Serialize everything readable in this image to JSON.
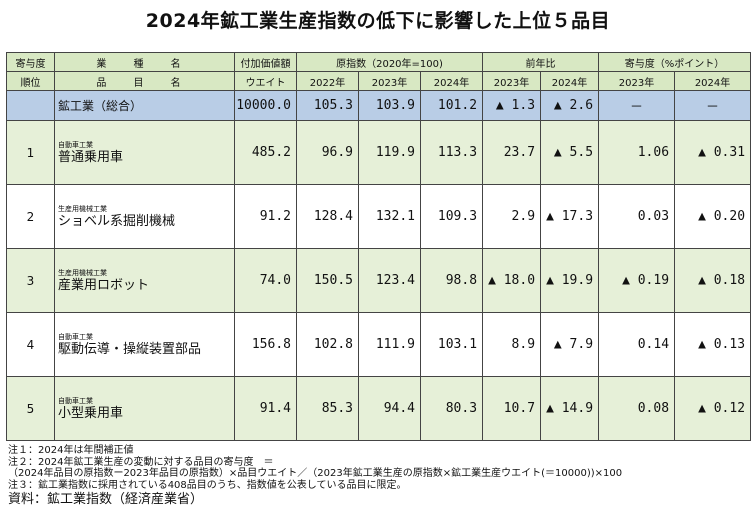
{
  "title": "2024年鉱工業生産指数の低下に影響した上位５品目",
  "headers": {
    "rank_top": "寄与度",
    "rank_bottom": "順位",
    "name_top": "業 種 名",
    "name_bottom": "品 目 名",
    "weight_top": "付加価値額",
    "weight_bottom": "ウエイト",
    "index_group": "原指数（2020年=100)",
    "yoy_group": "前年比",
    "contrib_group": "寄与度（%ポイント）",
    "years": {
      "y2022": "2022年",
      "y2023": "2023年",
      "y2024": "2024年"
    }
  },
  "total": {
    "name": "鉱工業（総合）",
    "weight": "10000.0",
    "idx2022": "105.3",
    "idx2023": "103.9",
    "idx2024": "101.2",
    "yoy2023": "▲ 1.3",
    "yoy2024": "▲ 2.6",
    "c2023": "－",
    "c2024": "－"
  },
  "rows": [
    {
      "rank": "1",
      "category": "自動車工業",
      "item": "普通乗用車",
      "weight": "485.2",
      "idx2022": "96.9",
      "idx2023": "119.9",
      "idx2024": "113.3",
      "yoy2023": "23.7",
      "yoy2024": "▲ 5.5",
      "c2023": "1.06",
      "c2024": "▲ 0.31"
    },
    {
      "rank": "2",
      "category": "生産用機械工業",
      "item": "ショベル系掘削機械",
      "weight": "91.2",
      "idx2022": "128.4",
      "idx2023": "132.1",
      "idx2024": "109.3",
      "yoy2023": "2.9",
      "yoy2024": "▲ 17.3",
      "c2023": "0.03",
      "c2024": "▲ 0.20"
    },
    {
      "rank": "3",
      "category": "生産用機械工業",
      "item": "産業用ロボット",
      "weight": "74.0",
      "idx2022": "150.5",
      "idx2023": "123.4",
      "idx2024": "98.8",
      "yoy2023": "▲ 18.0",
      "yoy2024": "▲ 19.9",
      "c2023": "▲ 0.19",
      "c2024": "▲ 0.18"
    },
    {
      "rank": "4",
      "category": "自動車工業",
      "item": "駆動伝導・操縦装置部品",
      "weight": "156.8",
      "idx2022": "102.8",
      "idx2023": "111.9",
      "idx2024": "103.1",
      "yoy2023": "8.9",
      "yoy2024": "▲ 7.9",
      "c2023": "0.14",
      "c2024": "▲ 0.13"
    },
    {
      "rank": "5",
      "category": "自動車工業",
      "item": "小型乗用車",
      "weight": "91.4",
      "idx2022": "85.3",
      "idx2023": "94.4",
      "idx2024": "80.3",
      "yoy2023": "10.7",
      "yoy2024": "▲ 14.9",
      "c2023": "0.08",
      "c2024": "▲ 0.12"
    }
  ],
  "notes": {
    "n1": "注１：2024年は年間補正値",
    "n2": "注２：2024年鉱工業生産の変動に対する品目の寄与度　＝",
    "n2b": "（2024年品目の原指数ー2023年品目の原指数）×品目ウエイト／（2023年鉱工業生産の原指数×鉱工業生産ウエイト(＝10000))×100",
    "n3": "注３：鉱工業指数に採用されている408品目のうち、指数値を公表している品目に限定。",
    "source": "資料：鉱工業指数（経済産業省）"
  }
}
